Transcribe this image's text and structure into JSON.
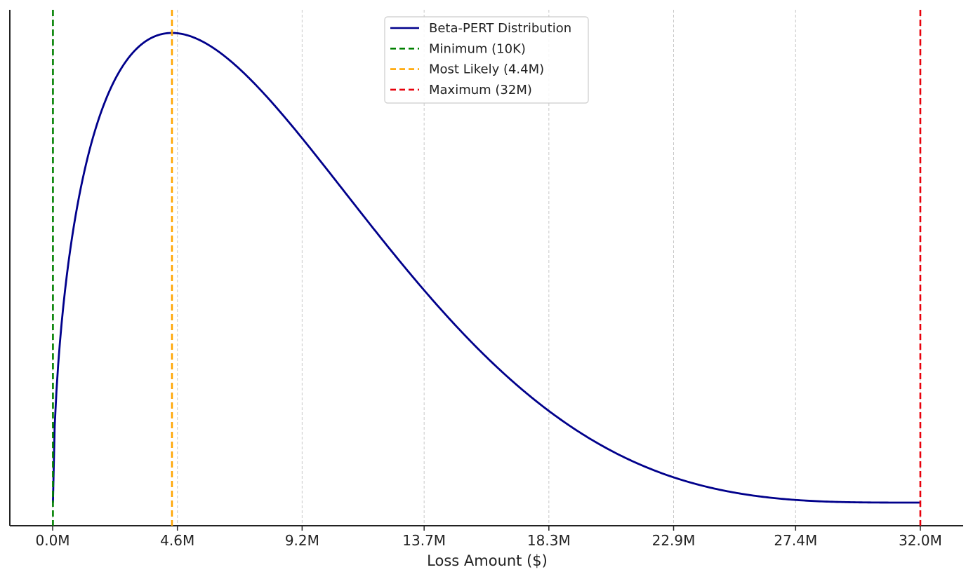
{
  "chart_data": {
    "type": "line",
    "title": "",
    "xlabel": "Loss Amount ($)",
    "ylabel": "",
    "xlim": [
      -1.58,
      33.58
    ],
    "x_unit": "million $",
    "ticks": [
      {
        "value": 0.0,
        "label": "0.0M"
      },
      {
        "value": 4.6,
        "label": "4.6M"
      },
      {
        "value": 9.2,
        "label": "9.2M"
      },
      {
        "value": 13.7,
        "label": "13.7M"
      },
      {
        "value": 18.3,
        "label": "18.3M"
      },
      {
        "value": 22.9,
        "label": "22.9M"
      },
      {
        "value": 27.4,
        "label": "27.4M"
      },
      {
        "value": 32.0,
        "label": "32.0M"
      }
    ],
    "grid": "vertical dashed",
    "y_axis_ticks_shown": false,
    "series": [
      {
        "name": "Beta-PERT Distribution",
        "kind": "pert",
        "min": 0.01,
        "mode": 4.4,
        "max": 32.0,
        "color": "#00008b",
        "style": "solid"
      }
    ],
    "reference_lines": [
      {
        "name": "Minimum (10K)",
        "x": 0.01,
        "color": "#008000",
        "style": "dashed"
      },
      {
        "name": "Most Likely (4.4M)",
        "x": 4.4,
        "color": "#ffa500",
        "style": "dashed"
      },
      {
        "name": "Maximum (32M)",
        "x": 32.0,
        "color": "#e8000b",
        "style": "dashed"
      }
    ],
    "legend_position": "top-center"
  }
}
